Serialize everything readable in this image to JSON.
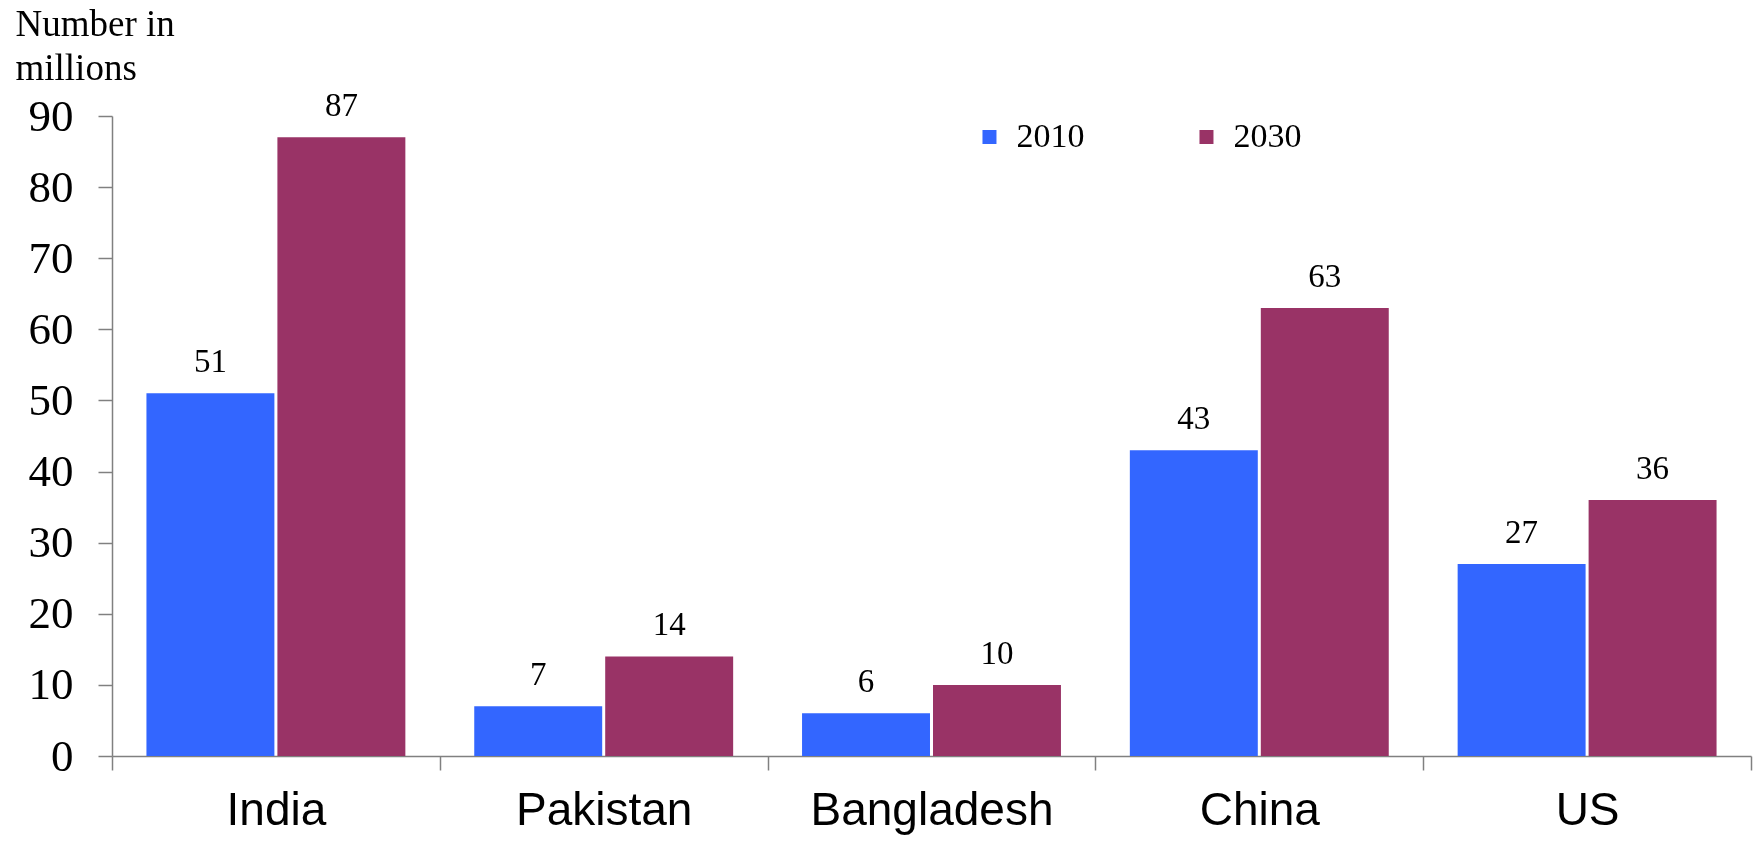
{
  "chart_data": {
    "type": "bar",
    "ylabel": "Number in millions",
    "categories": [
      "India",
      "Pakistan",
      "Bangladesh",
      "China",
      "US"
    ],
    "series": [
      {
        "name": "2010",
        "color": "#3366ff",
        "values": [
          51,
          7,
          6,
          43,
          27
        ]
      },
      {
        "name": "2030",
        "color": "#993366",
        "values": [
          87,
          14,
          10,
          63,
          36
        ]
      }
    ],
    "ylim": [
      0,
      90
    ],
    "yticks": [
      0,
      10,
      20,
      30,
      40,
      50,
      60,
      70,
      80,
      90
    ],
    "grid": false,
    "legend": "top",
    "data_labels": true
  }
}
